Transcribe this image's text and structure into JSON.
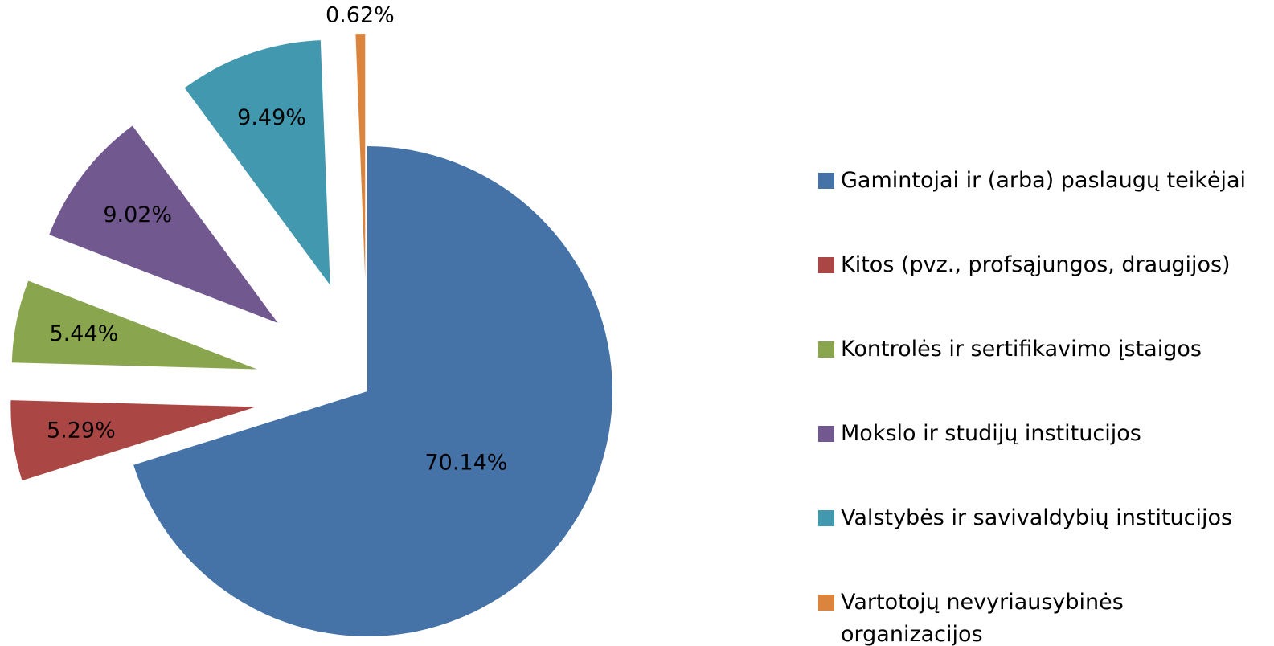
{
  "chart_data": {
    "type": "pie",
    "categories": [
      "Gamintojai ir (arba) paslaugų teikėjai",
      "Kitos (pvz., profsąjungos, draugijos)",
      "Kontrolės ir sertifikavimo įstaigos",
      "Mokslo ir studijų institucijos",
      "Valstybės ir savivaldybių institucijos",
      "Vartotojų nevyriausybinės organizacijos"
    ],
    "values": [
      70.14,
      5.29,
      5.44,
      9.02,
      9.49,
      0.62
    ],
    "value_labels": [
      "70.14%",
      "5.29%",
      "5.44%",
      "9.02%",
      "9.49%",
      "0.62%"
    ],
    "colors": [
      "#4572a7",
      "#aa4643",
      "#89a54e",
      "#71588f",
      "#4198af",
      "#db843d"
    ],
    "legend": "right"
  }
}
